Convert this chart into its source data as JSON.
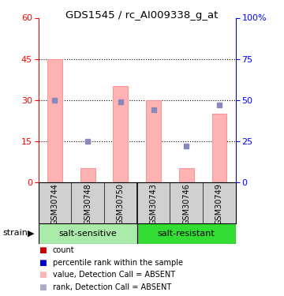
{
  "title": "GDS1545 / rc_AI009338_g_at",
  "samples": [
    "GSM30744",
    "GSM30748",
    "GSM30750",
    "GSM30743",
    "GSM30746",
    "GSM30749"
  ],
  "group_labels": [
    "salt-sensitive",
    "salt-resistant"
  ],
  "pink_bar_values": [
    45,
    5,
    35,
    30,
    5,
    25
  ],
  "blue_square_values": [
    50,
    25,
    49,
    44,
    22,
    47
  ],
  "ylim_left": [
    0,
    60
  ],
  "ylim_right": [
    0,
    100
  ],
  "yticks_left": [
    0,
    15,
    30,
    45,
    60
  ],
  "yticks_right": [
    0,
    25,
    50,
    75,
    100
  ],
  "ytick_labels_right": [
    "0",
    "25",
    "50",
    "75",
    "100%"
  ],
  "pink_bar_color": "#FFB3B3",
  "pink_bar_edge": "#FF9090",
  "blue_square_color": "#8888BB",
  "red_marker_color": "#CC0000",
  "blue_marker_color": "#0000CC",
  "background_color": "#ffffff",
  "sample_bg_color": "#D0D0D0",
  "group1_color": "#AAEAAA",
  "group2_color": "#33DD33",
  "legend_labels": [
    "count",
    "percentile rank within the sample",
    "value, Detection Call = ABSENT",
    "rank, Detection Call = ABSENT"
  ],
  "legend_colors": [
    "#CC0000",
    "#0000CC",
    "#FFB3B3",
    "#AAAACC"
  ]
}
